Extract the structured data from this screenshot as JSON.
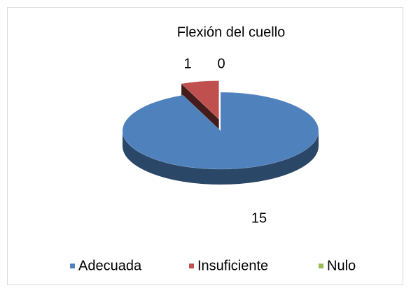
{
  "chart_data": {
    "type": "pie",
    "title": "Flexión del cuello",
    "categories": [
      "Adecuada",
      "Insuficiente",
      "Nulo"
    ],
    "values": [
      15,
      1,
      0
    ],
    "colors": [
      "#4f81bd",
      "#c0504d",
      "#9bbb59"
    ],
    "legend": "bottom"
  }
}
